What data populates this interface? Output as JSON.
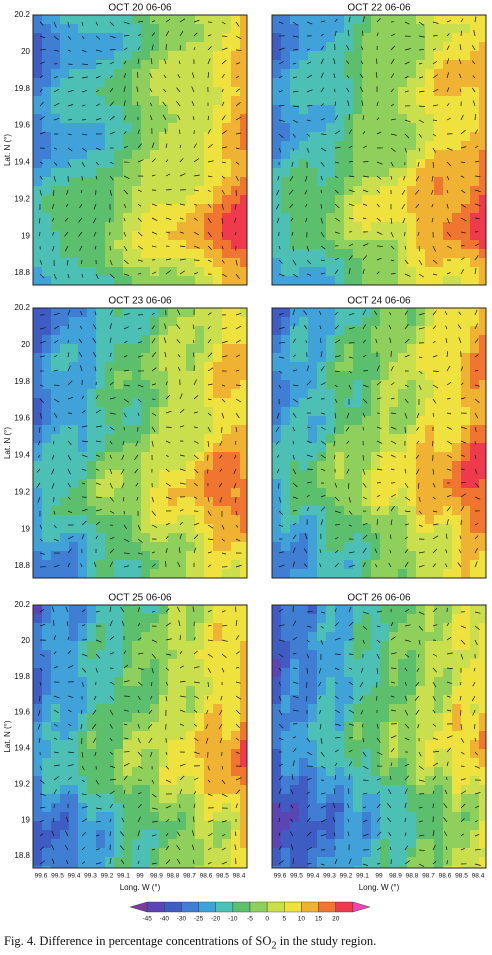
{
  "panels": [
    {
      "title": "OCT 20 06-06"
    },
    {
      "title": "OCT 22 06-06"
    },
    {
      "title": "OCT 23 06-06"
    },
    {
      "title": "OCT 24 06-06"
    },
    {
      "title": "OCT 25 06-06"
    },
    {
      "title": "OCT 26 06-06"
    }
  ],
  "y_axis": {
    "label": "Lat. N (°)",
    "ticks": [
      "20.2",
      "20",
      "19.8",
      "19.6",
      "19.4",
      "19.2",
      "19",
      "18.8"
    ]
  },
  "x_axis": {
    "label": "Long. W (°)",
    "ticks": [
      "99.6",
      "99.5",
      "99.4",
      "99.3",
      "99.2",
      "99.1",
      "99",
      "98.9",
      "98.8",
      "98.7",
      "98.6",
      "98.5",
      "98.4"
    ]
  },
  "colorbar": {
    "labels": [
      "-45",
      "-40",
      "-30",
      "-25",
      "-20",
      "-10",
      "-5",
      "0",
      "5",
      "10",
      "15",
      "20"
    ],
    "colors": [
      "#7a3d9e",
      "#5b44b4",
      "#3f5cc2",
      "#3f7ed2",
      "#41a2da",
      "#4cc0b4",
      "#5cbf6e",
      "#8fd05c",
      "#c9df4e",
      "#efe23f",
      "#f0b232",
      "#ef7531",
      "#ef3a4e",
      "#ee45b0"
    ]
  },
  "caption": {
    "before": "Fig. 4. Difference in percentage concentrations of SO",
    "sub": "2",
    "after": " in the study region."
  }
}
